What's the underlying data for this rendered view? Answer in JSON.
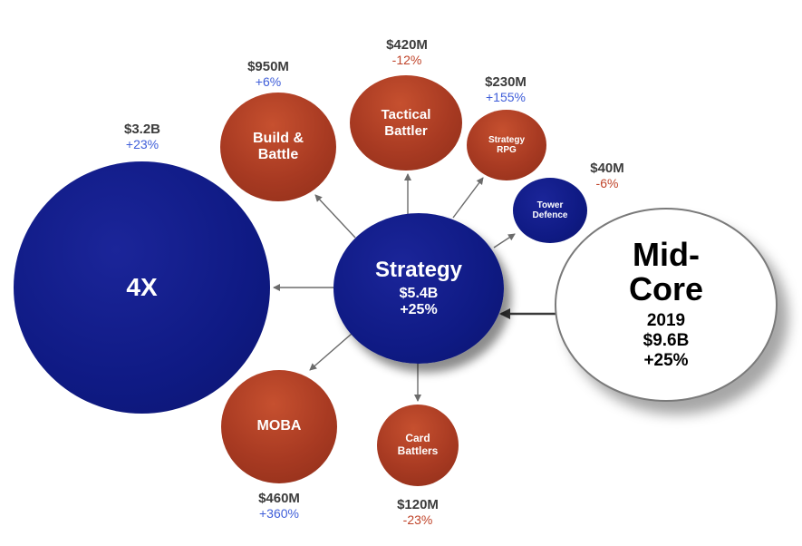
{
  "center": {
    "title": "Strategy",
    "value": "$5.4B",
    "growth": "+25%"
  },
  "parent": {
    "title_line1": "Mid-",
    "title_line2": "Core",
    "year": "2019",
    "value": "$9.6B",
    "growth": "+25%"
  },
  "segments": {
    "x4": {
      "label": "4X",
      "value": "$3.2B",
      "change": "+23%"
    },
    "build": {
      "label_line1": "Build &",
      "label_line2": "Battle",
      "value": "$950M",
      "change": "+6%"
    },
    "tactical": {
      "label_line1": "Tactical",
      "label_line2": "Battler",
      "value": "$420M",
      "change": "-12%"
    },
    "srpg": {
      "label_line1": "Strategy",
      "label_line2": "RPG",
      "value": "$230M",
      "change": "+155%"
    },
    "tower": {
      "label_line1": "Tower",
      "label_line2": "Defence",
      "value": "$40M",
      "change": "-6%"
    },
    "moba": {
      "label": "MOBA",
      "value": "$460M",
      "change": "+360%"
    },
    "card": {
      "label_line1": "Card",
      "label_line2": "Battlers",
      "value": "$120M",
      "change": "-23%"
    }
  },
  "colors": {
    "blue": "#0f1a84",
    "red": "#a83a22",
    "positive": "#3f5ed9",
    "negative": "#c0442a",
    "arrow": "#6b6b6b"
  }
}
